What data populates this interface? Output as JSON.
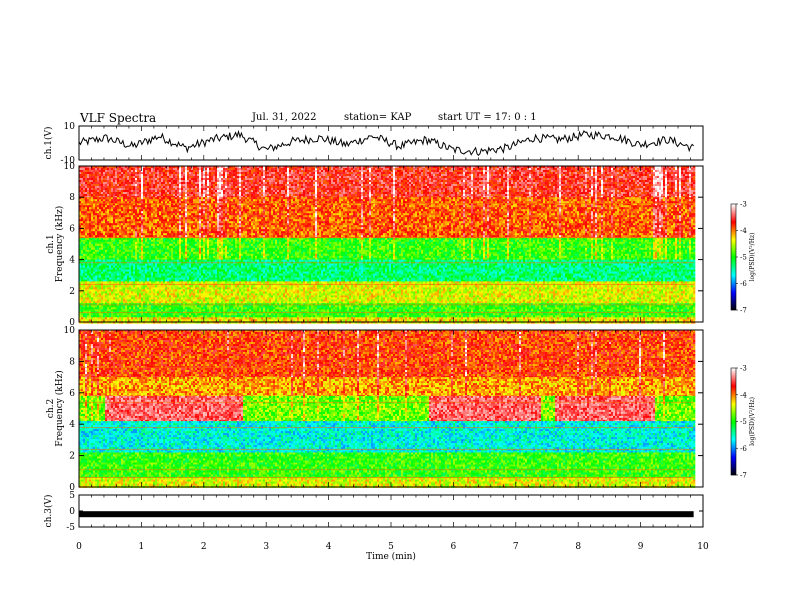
{
  "header": {
    "title": "VLF Spectra",
    "date": "Jul. 31, 2022",
    "station": "station= KAP",
    "start": "start UT = 17: 0 : 1"
  },
  "chart_data": [
    {
      "type": "line",
      "panel": "ch1-waveform",
      "ylabel": "ch.1(V)",
      "ylim": [
        -10,
        10
      ],
      "yticks": [
        "10",
        "-10"
      ],
      "description": "Noisy amplitude trace fluctuating mostly between about -6 and +6 V across the 10-minute window",
      "series": [
        {
          "values_sample": [
            0,
            3,
            -2,
            4,
            -3,
            2,
            5,
            -4,
            1,
            3,
            -1,
            4,
            -2,
            2,
            -4,
            -5,
            -3,
            3,
            2,
            5,
            4,
            -1,
            2,
            -3
          ]
        }
      ]
    },
    {
      "type": "heatmap",
      "panel": "ch1-spectrogram",
      "ylabel": "ch.1 Frequency (kHz)",
      "ylim": [
        0,
        10
      ],
      "yticks": [
        "0",
        "2",
        "4",
        "6",
        "8",
        "10"
      ],
      "bands_khz": [
        {
          "from": 8.0,
          "to": 10.0,
          "level": -3.6
        },
        {
          "from": 5.4,
          "to": 8.0,
          "level": -3.9
        },
        {
          "from": 4.0,
          "to": 5.4,
          "level": -4.9
        },
        {
          "from": 2.6,
          "to": 4.0,
          "level": -5.3
        },
        {
          "from": 1.2,
          "to": 2.6,
          "level": -4.4
        },
        {
          "from": 0.3,
          "to": 1.2,
          "level": -4.9
        },
        {
          "from": 0.0,
          "to": 0.3,
          "level": -4.3
        }
      ]
    },
    {
      "type": "heatmap",
      "panel": "ch2-spectrogram",
      "ylabel": "ch.2 Frequency (kHz)",
      "ylim": [
        0,
        10
      ],
      "yticks": [
        "0",
        "2",
        "4",
        "6",
        "8",
        "10"
      ],
      "bands_khz": [
        {
          "from": 7.0,
          "to": 10.0,
          "level": -3.8
        },
        {
          "from": 5.8,
          "to": 7.0,
          "level": -4.1
        },
        {
          "from": 4.2,
          "to": 5.8,
          "level": -4.7
        },
        {
          "from": 2.2,
          "to": 4.2,
          "level": -5.6
        },
        {
          "from": 0.6,
          "to": 2.2,
          "level": -4.9
        },
        {
          "from": 0.0,
          "to": 0.6,
          "level": -4.4
        }
      ]
    },
    {
      "type": "line",
      "panel": "ch3-waveform",
      "ylabel": "ch.3(V)",
      "ylim": [
        -5,
        5
      ],
      "yticks": [
        "5",
        "0",
        "-5"
      ],
      "series": [
        {
          "values": [
            -1,
            -1
          ]
        }
      ]
    }
  ],
  "xaxis": {
    "label": "Time (min)",
    "range": [
      0,
      10
    ],
    "data_end": 9.85,
    "ticks": [
      "0",
      "1",
      "2",
      "3",
      "4",
      "5",
      "6",
      "7",
      "8",
      "9",
      "10"
    ]
  },
  "colorbar": {
    "label": "log(PSD)(V²/Hz)",
    "range": [
      -7,
      -3
    ],
    "ticks": [
      "-3",
      "-4",
      "-5",
      "-6",
      "-7"
    ],
    "colors": [
      "#000000",
      "#0000ff",
      "#00ffff",
      "#00ff00",
      "#ffff00",
      "#ff0000",
      "#ffffff"
    ]
  }
}
